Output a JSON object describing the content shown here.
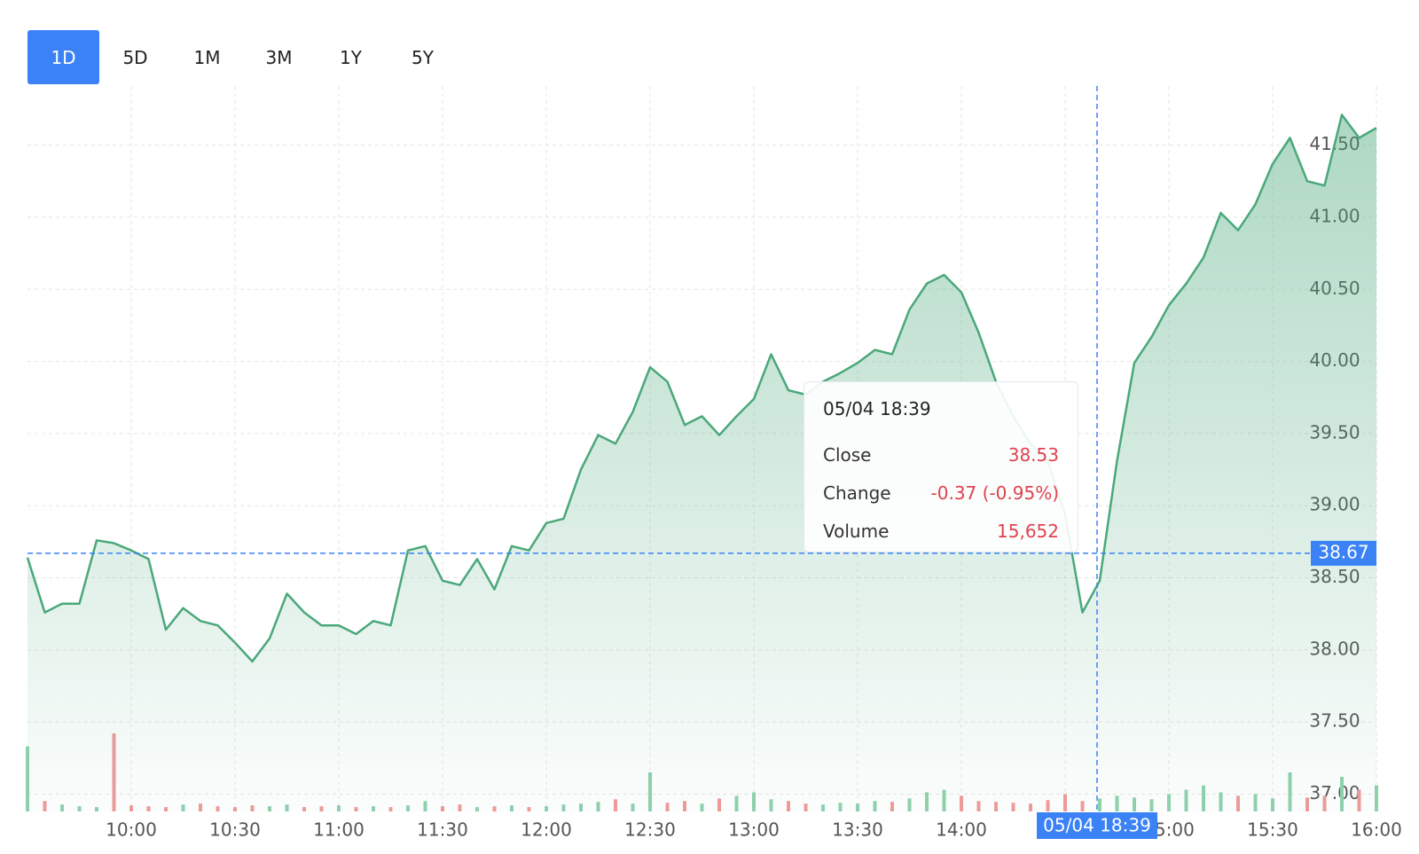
{
  "range_buttons": {
    "options": [
      "1D",
      "5D",
      "1M",
      "3M",
      "1Y",
      "5Y"
    ],
    "active": 0
  },
  "chart_data": {
    "type": "line",
    "x": [
      "09:30",
      "09:35",
      "09:40",
      "09:45",
      "09:50",
      "09:55",
      "10:00",
      "10:05",
      "10:10",
      "10:15",
      "10:20",
      "10:25",
      "10:30",
      "10:35",
      "10:40",
      "10:45",
      "10:50",
      "10:55",
      "11:00",
      "11:05",
      "11:10",
      "11:15",
      "11:20",
      "11:25",
      "11:30",
      "11:35",
      "11:40",
      "11:45",
      "11:50",
      "11:55",
      "12:00",
      "12:05",
      "12:10",
      "12:15",
      "12:20",
      "12:25",
      "12:30",
      "12:35",
      "12:40",
      "12:45",
      "12:50",
      "12:55",
      "13:00",
      "13:05",
      "13:10",
      "13:15",
      "13:20",
      "13:25",
      "13:30",
      "13:35",
      "13:40",
      "13:45",
      "13:50",
      "13:55",
      "14:00",
      "14:05",
      "14:10",
      "14:15",
      "14:20",
      "14:25",
      "14:30",
      "14:35",
      "14:40",
      "14:45",
      "14:50",
      "14:55",
      "15:00",
      "15:05",
      "15:10",
      "15:15",
      "15:20",
      "15:25",
      "15:30",
      "15:35",
      "15:40",
      "15:45",
      "15:50",
      "15:55",
      "16:00"
    ],
    "series": [
      {
        "color": "#4aa87a",
        "values": [
          38.64,
          38.26,
          38.32,
          38.32,
          38.76,
          38.74,
          38.69,
          38.63,
          38.14,
          38.29,
          38.2,
          38.17,
          38.05,
          37.92,
          38.08,
          38.39,
          38.26,
          38.17,
          38.17,
          38.11,
          38.2,
          38.17,
          38.69,
          38.72,
          38.48,
          38.45,
          38.63,
          38.42,
          38.72,
          38.69,
          38.88,
          38.91,
          39.25,
          39.49,
          39.43,
          39.65,
          39.96,
          39.86,
          39.56,
          39.62,
          39.49,
          39.62,
          39.74,
          40.05,
          39.8,
          39.77,
          39.86,
          39.92,
          39.99,
          40.08,
          40.05,
          40.36,
          40.54,
          40.6,
          40.48,
          40.2,
          39.86,
          39.62,
          39.43,
          39.31,
          38.94,
          38.26,
          38.48,
          39.31,
          39.99,
          40.17,
          40.39,
          40.54,
          40.72,
          41.03,
          40.91,
          41.09,
          41.37,
          41.55,
          41.25,
          41.22,
          41.71,
          41.55,
          41.62
        ]
      }
    ],
    "volume": [
      75000,
      12000,
      8000,
      6000,
      5000,
      90000,
      7000,
      6000,
      5000,
      8000,
      9000,
      6000,
      5000,
      7000,
      6000,
      8000,
      5000,
      6000,
      7000,
      5000,
      6000,
      5000,
      7000,
      12000,
      6000,
      8000,
      5000,
      6000,
      7000,
      5000,
      6000,
      8000,
      9000,
      11000,
      14000,
      9000,
      45000,
      10000,
      12000,
      9000,
      15000,
      18000,
      22000,
      14000,
      12000,
      9000,
      8000,
      10000,
      9000,
      12000,
      11000,
      15000,
      22000,
      25000,
      18000,
      12000,
      11000,
      10000,
      9000,
      13000,
      20000,
      12000,
      15000,
      18000,
      16000,
      14000,
      20000,
      25000,
      30000,
      22000,
      18000,
      20000,
      15000,
      45000,
      16000,
      18000,
      40000,
      25000,
      30000
    ],
    "volume_up_color": "#8fd1ad",
    "volume_down_color": "#f19a9a",
    "ylim": [
      36.88,
      41.91
    ],
    "yticks": [
      {
        "value": 37,
        "label": "37.00"
      },
      {
        "value": 37.5,
        "label": "37.50"
      },
      {
        "value": 38,
        "label": "38.00"
      },
      {
        "value": 38.5,
        "label": "38.50"
      },
      {
        "value": 39,
        "label": "39.00"
      },
      {
        "value": 39.5,
        "label": "39.50"
      },
      {
        "value": 40,
        "label": "40.00"
      },
      {
        "value": 40.5,
        "label": "40.50"
      },
      {
        "value": 41,
        "label": "41.00"
      },
      {
        "value": 41.5,
        "label": "41.50"
      }
    ],
    "xticks": [
      "10:00",
      "10:30",
      "11:00",
      "11:30",
      "12:00",
      "12:30",
      "13:00",
      "13:30",
      "14:00",
      "14:30",
      "15:00",
      "15:30",
      "16:00"
    ],
    "grid": true,
    "crosshair": {
      "price": 38.67,
      "time_label": "05/04 18:39"
    },
    "tooltip": {
      "title": "05/04 18:39",
      "rows": [
        {
          "label": "Close",
          "value": "38.53"
        },
        {
          "label": "Change",
          "value": "-0.37 (-0.95%)"
        },
        {
          "label": "Volume",
          "value": "15,652"
        }
      ]
    }
  }
}
